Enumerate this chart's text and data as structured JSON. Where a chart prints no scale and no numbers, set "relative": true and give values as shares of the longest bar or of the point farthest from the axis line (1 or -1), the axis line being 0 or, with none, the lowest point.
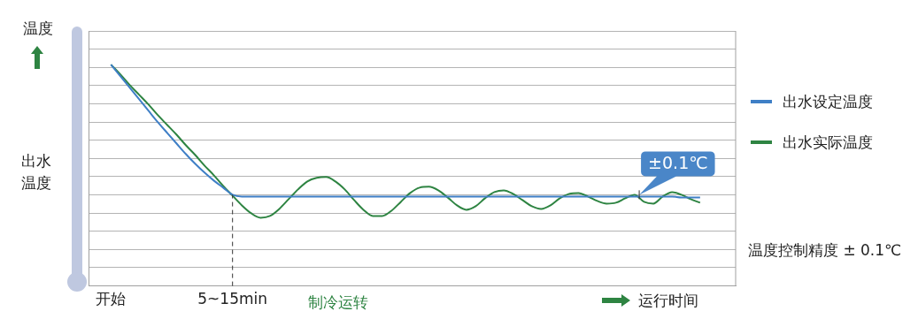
{
  "chart_data": {
    "type": "line",
    "relative": true,
    "ylabel": "温度",
    "xlabel": "运行时间",
    "legend": "right",
    "grid": "y",
    "tick_labels": "x",
    "marker": "none",
    "line_style": "solid",
    "categories": [
      "开始",
      null,
      null,
      null,
      null,
      null,
      null,
      null,
      null,
      null,
      null,
      null,
      null,
      "5~15min",
      null,
      null,
      null,
      null,
      null,
      null,
      null,
      null,
      null,
      null,
      null,
      null,
      null,
      null,
      null,
      null,
      null,
      null,
      null,
      null,
      null,
      null,
      null,
      null,
      null,
      null,
      null,
      null,
      null,
      null,
      null,
      null,
      null,
      null,
      null,
      null,
      null,
      null,
      null,
      null,
      null,
      null,
      null,
      null,
      null,
      null,
      null,
      null,
      null,
      null
    ],
    "series": [
      {
        "name": "出水设定温度",
        "color": "#3f7fc6",
        "values": [
          1.0,
          0.948,
          0.896,
          0.844,
          0.792,
          0.74,
          0.692,
          0.644,
          0.596,
          0.552,
          0.512,
          0.476,
          0.444,
          0.412,
          0.404,
          0.404,
          0.404,
          0.404,
          0.404,
          0.404,
          0.404,
          0.404,
          0.404,
          0.404,
          0.404,
          0.404,
          0.404,
          0.404,
          0.404,
          0.404,
          0.404,
          0.404,
          0.404,
          0.404,
          0.404,
          0.404,
          0.404,
          0.404,
          0.404,
          0.404,
          0.404,
          0.404,
          0.404,
          0.404,
          0.404,
          0.404,
          0.404,
          0.404,
          0.404,
          0.404,
          0.404,
          0.404,
          0.404,
          0.404,
          0.404,
          0.404,
          0.404,
          0.404,
          0.404,
          0.404,
          0.404,
          0.4,
          0.4,
          0.4
        ]
      },
      {
        "name": "出水实际温度",
        "color": "#2e8442",
        "values": [
          1.0,
          0.956,
          0.908,
          0.864,
          0.82,
          0.772,
          0.728,
          0.684,
          0.636,
          0.592,
          0.544,
          0.5,
          0.452,
          0.408,
          0.364,
          0.328,
          0.308,
          0.316,
          0.348,
          0.392,
          0.436,
          0.472,
          0.488,
          0.492,
          0.472,
          0.436,
          0.388,
          0.344,
          0.316,
          0.316,
          0.34,
          0.38,
          0.42,
          0.444,
          0.448,
          0.432,
          0.4,
          0.364,
          0.344,
          0.36,
          0.396,
          0.424,
          0.432,
          0.416,
          0.388,
          0.36,
          0.348,
          0.364,
          0.396,
          0.416,
          0.42,
          0.404,
          0.384,
          0.372,
          0.376,
          0.396,
          0.412,
          0.38,
          0.372,
          0.404,
          0.424,
          0.412,
          0.392,
          0.376
        ]
      }
    ],
    "ref_lines": [
      {
        "axis": "x",
        "value": "5~15min",
        "color": "#333333",
        "line_style": "dashed"
      }
    ],
    "annotations": [
      "出水温度",
      "制冷运转",
      "温度控制精度 ± 0.1℃",
      {
        "text": "±0.1℃",
        "y": 0.412
      }
    ]
  }
}
